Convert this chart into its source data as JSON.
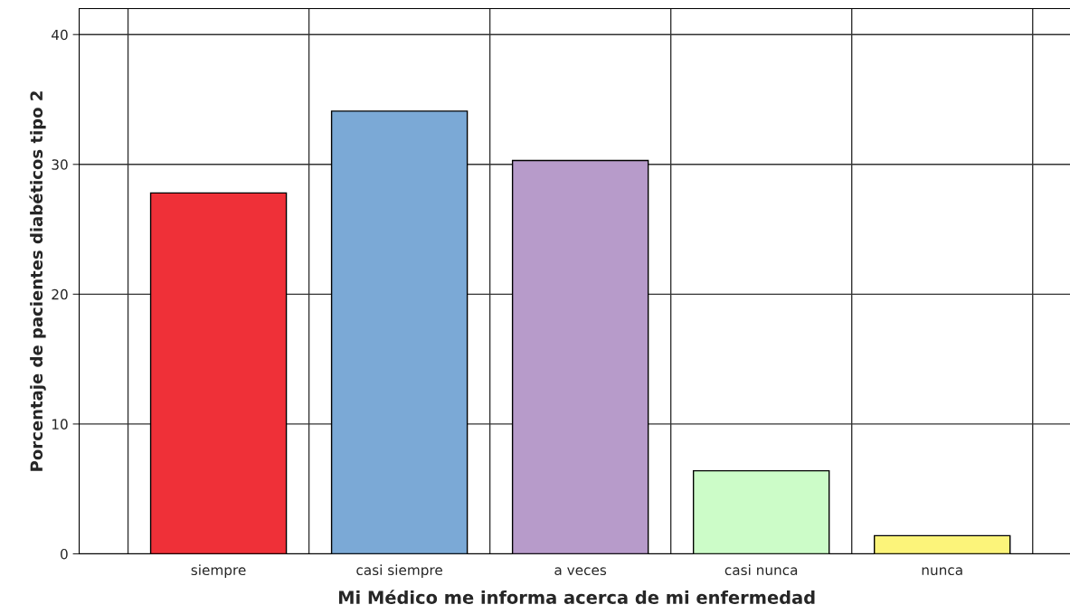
{
  "chart_data": {
    "type": "bar",
    "categories": [
      "siempre",
      "casi siempre",
      "a veces",
      "casi nunca",
      "nunca"
    ],
    "values": [
      27.8,
      34.1,
      30.3,
      6.4,
      1.4
    ],
    "colors": [
      "#ef3038",
      "#7ba9d6",
      "#b79bca",
      "#ccfcc8",
      "#fcf47a"
    ],
    "xlabel": "Mi Médico me informa acerca de mi enfermedad",
    "ylabel": "Porcentaje de pacientes diabéticos tipo 2",
    "ylim": [
      0,
      42
    ],
    "yticks": [
      0,
      10,
      20,
      30,
      40
    ],
    "grid": true
  }
}
